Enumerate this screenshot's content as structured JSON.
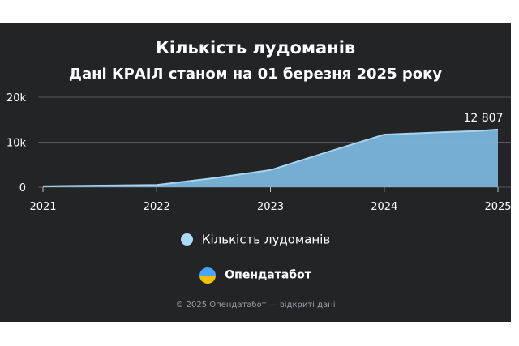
{
  "chart_data": {
    "type": "area",
    "title": "Кількість лудоманів",
    "subtitle": "Дані КРАІЛ станом на 01 березня 2025 року",
    "x": [
      2021,
      2021.5,
      2022,
      2022.5,
      2023,
      2023.5,
      2024,
      2024.5,
      2024.83,
      2025
    ],
    "x_ticks": [
      "2021",
      "2022",
      "2023",
      "2024",
      "2025"
    ],
    "y_ticks": [
      "0",
      "10k",
      "20k"
    ],
    "ylim": [
      0,
      20000
    ],
    "xlim": [
      2021,
      2025
    ],
    "grid": true,
    "series": [
      {
        "name": "Кількість лудоманів",
        "values": [
          200,
          350,
          500,
          2000,
          3800,
          7800,
          11700,
          12200,
          12500,
          12807
        ],
        "color": "#7bb6da"
      }
    ],
    "data_label": "12 807",
    "legend_position": "bottom"
  },
  "brand": {
    "name": "Опендатабот"
  },
  "footer": "© 2025 Опендатабот — відкриті дані"
}
